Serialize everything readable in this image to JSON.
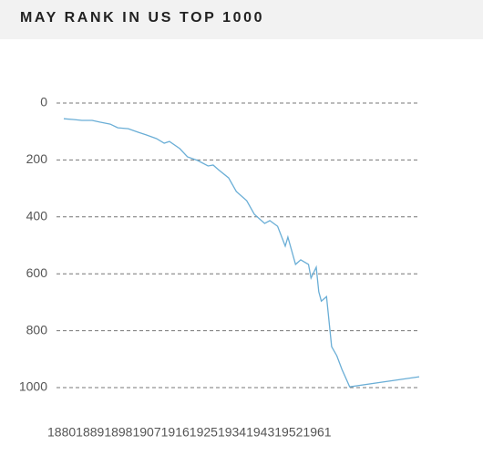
{
  "chart_data": {
    "type": "line",
    "title": "MAY RANK IN US TOP 1000",
    "x": [
      1880,
      1884,
      1887,
      1891,
      1894,
      1898,
      1901,
      1905,
      1909,
      1912,
      1916,
      1919,
      1921,
      1925,
      1928,
      1932,
      1936,
      1938,
      1940,
      1944,
      1947,
      1951,
      1954,
      1958,
      1960,
      1963,
      1966,
      1967,
      1970,
      1972,
      1975,
      1976,
      1978,
      1979,
      1980,
      1982,
      1984,
      1986,
      1988,
      1991,
      2018
    ],
    "values": [
      55,
      58,
      61,
      61,
      67,
      74,
      87,
      90,
      103,
      112,
      125,
      141,
      135,
      160,
      189,
      202,
      221,
      218,
      234,
      263,
      311,
      343,
      391,
      423,
      413,
      433,
      503,
      471,
      567,
      551,
      567,
      615,
      577,
      663,
      696,
      680,
      856,
      888,
      936,
      997,
      962
    ],
    "color": "#6aaed6",
    "xlim": [
      1880,
      2018
    ],
    "xticks": [
      1880,
      1889,
      1898,
      1907,
      1916,
      1925,
      1934,
      1943,
      1952,
      1961
    ],
    "ylim": [
      0,
      1000
    ],
    "yticks": [
      0,
      200,
      400,
      600,
      800,
      1000
    ],
    "y_inverted": true,
    "grid": true
  }
}
